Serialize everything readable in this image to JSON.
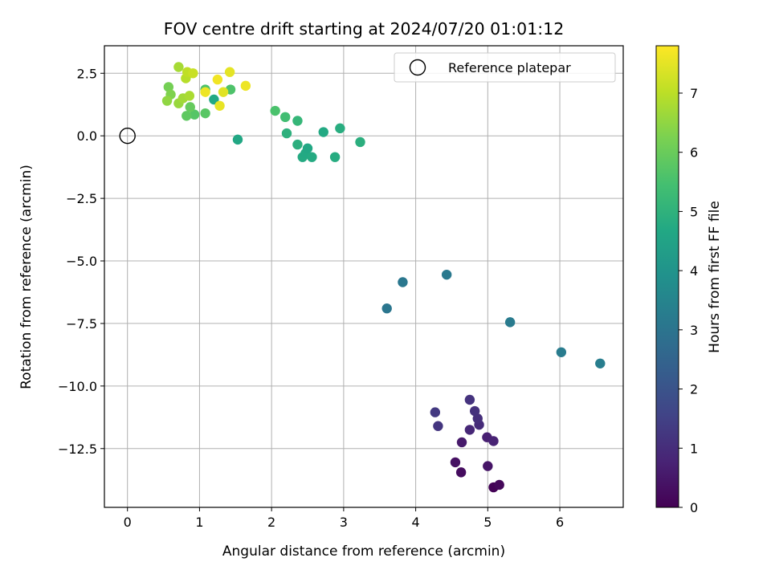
{
  "chart_data": {
    "type": "scatter",
    "title": "FOV centre drift starting at 2024/07/20 01:01:12",
    "xlabel": "Angular distance from reference (arcmin)",
    "ylabel": "Rotation from reference (arcmin)",
    "xlim": [
      -0.32,
      6.88
    ],
    "ylim": [
      -14.85,
      3.6
    ],
    "xticks": [
      0,
      1,
      2,
      3,
      4,
      5,
      6
    ],
    "xtick_labels": [
      "0",
      "1",
      "2",
      "3",
      "4",
      "5",
      "6"
    ],
    "yticks": [
      2.5,
      0.0,
      -2.5,
      -5.0,
      -7.5,
      -10.0,
      -12.5
    ],
    "ytick_labels": [
      "2.5",
      "0.0",
      "−2.5",
      "−5.0",
      "−7.5",
      "−10.0",
      "−12.5"
    ],
    "grid": true,
    "legend": {
      "placement": "top-right",
      "entries": [
        "Reference platepar"
      ]
    },
    "reference_point": {
      "x": 0,
      "y": 0,
      "label": "Reference platepar"
    },
    "colorbar": {
      "label": "Hours from first FF file",
      "colormap": "viridis",
      "range": [
        0,
        7.8
      ],
      "ticks": [
        0,
        1,
        2,
        3,
        4,
        5,
        6,
        7
      ],
      "tick_labels": [
        "0",
        "1",
        "2",
        "3",
        "4",
        "5",
        "6",
        "7"
      ]
    },
    "points": [
      {
        "x": 5.08,
        "y": -14.05,
        "hours": 0.05
      },
      {
        "x": 5.16,
        "y": -13.95,
        "hours": 0.15
      },
      {
        "x": 4.63,
        "y": -13.45,
        "hours": 0.25
      },
      {
        "x": 4.55,
        "y": -13.05,
        "hours": 0.35
      },
      {
        "x": 5.0,
        "y": -13.2,
        "hours": 0.45
      },
      {
        "x": 4.64,
        "y": -12.25,
        "hours": 0.55
      },
      {
        "x": 4.99,
        "y": -12.05,
        "hours": 0.7
      },
      {
        "x": 5.08,
        "y": -12.2,
        "hours": 0.75
      },
      {
        "x": 4.75,
        "y": -11.75,
        "hours": 0.85
      },
      {
        "x": 4.88,
        "y": -11.55,
        "hours": 0.95
      },
      {
        "x": 4.86,
        "y": -11.3,
        "hours": 1.05
      },
      {
        "x": 4.82,
        "y": -11.0,
        "hours": 1.1
      },
      {
        "x": 4.75,
        "y": -10.55,
        "hours": 1.15
      },
      {
        "x": 4.31,
        "y": -11.6,
        "hours": 1.2
      },
      {
        "x": 4.27,
        "y": -11.05,
        "hours": 1.3
      },
      {
        "x": 3.6,
        "y": -6.9,
        "hours": 3.05
      },
      {
        "x": 3.82,
        "y": -5.85,
        "hours": 3.1
      },
      {
        "x": 4.43,
        "y": -5.55,
        "hours": 3.15
      },
      {
        "x": 5.31,
        "y": -7.45,
        "hours": 3.2
      },
      {
        "x": 6.02,
        "y": -8.65,
        "hours": 3.25
      },
      {
        "x": 6.56,
        "y": -9.1,
        "hours": 3.3
      },
      {
        "x": 1.53,
        "y": -0.15,
        "hours": 4.65
      },
      {
        "x": 2.05,
        "y": 1.0,
        "hours": 5.55
      },
      {
        "x": 2.19,
        "y": 0.75,
        "hours": 5.4
      },
      {
        "x": 2.36,
        "y": 0.6,
        "hours": 5.15
      },
      {
        "x": 2.21,
        "y": 0.1,
        "hours": 4.95
      },
      {
        "x": 2.36,
        "y": -0.35,
        "hours": 4.9
      },
      {
        "x": 2.43,
        "y": -0.85,
        "hours": 4.75
      },
      {
        "x": 2.47,
        "y": -0.7,
        "hours": 4.7
      },
      {
        "x": 2.5,
        "y": -0.5,
        "hours": 4.65
      },
      {
        "x": 2.56,
        "y": -0.85,
        "hours": 4.75
      },
      {
        "x": 2.72,
        "y": 0.15,
        "hours": 4.7
      },
      {
        "x": 2.88,
        "y": -0.85,
        "hours": 4.8
      },
      {
        "x": 2.95,
        "y": 0.3,
        "hours": 4.85
      },
      {
        "x": 3.23,
        "y": -0.25,
        "hours": 4.9
      },
      {
        "x": 1.2,
        "y": 1.45,
        "hours": 4.7
      },
      {
        "x": 1.08,
        "y": 1.85,
        "hours": 5.6
      },
      {
        "x": 1.43,
        "y": 1.85,
        "hours": 5.6
      },
      {
        "x": 0.93,
        "y": 0.85,
        "hours": 5.7
      },
      {
        "x": 1.08,
        "y": 0.9,
        "hours": 5.75
      },
      {
        "x": 0.82,
        "y": 0.8,
        "hours": 5.85
      },
      {
        "x": 0.87,
        "y": 1.15,
        "hours": 5.95
      },
      {
        "x": 0.57,
        "y": 1.95,
        "hours": 6.15
      },
      {
        "x": 0.6,
        "y": 1.65,
        "hours": 6.3
      },
      {
        "x": 0.55,
        "y": 1.4,
        "hours": 6.5
      },
      {
        "x": 0.71,
        "y": 1.3,
        "hours": 6.6
      },
      {
        "x": 0.77,
        "y": 1.5,
        "hours": 6.7
      },
      {
        "x": 0.86,
        "y": 1.6,
        "hours": 6.8
      },
      {
        "x": 0.71,
        "y": 2.75,
        "hours": 6.75
      },
      {
        "x": 0.81,
        "y": 2.3,
        "hours": 6.95
      },
      {
        "x": 0.83,
        "y": 2.55,
        "hours": 7.05
      },
      {
        "x": 0.91,
        "y": 2.5,
        "hours": 7.15
      },
      {
        "x": 1.08,
        "y": 1.75,
        "hours": 7.6
      },
      {
        "x": 1.25,
        "y": 2.25,
        "hours": 7.65
      },
      {
        "x": 1.28,
        "y": 1.2,
        "hours": 7.55
      },
      {
        "x": 1.33,
        "y": 1.75,
        "hours": 7.45
      },
      {
        "x": 1.42,
        "y": 2.55,
        "hours": 7.5
      },
      {
        "x": 1.64,
        "y": 2.0,
        "hours": 7.6
      }
    ]
  }
}
